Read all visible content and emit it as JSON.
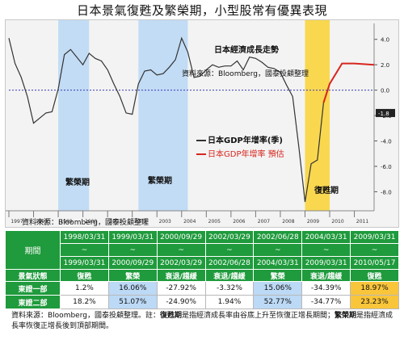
{
  "title": "日本景氣復甦及繁榮期，小型股常有優異表現",
  "chart": {
    "heading": "日本經濟成長走勢",
    "source_top": "資料來源：Bloomberg，國泰投顧整理",
    "source_bottom": "資料來源：Bloomberg，國泰投顧整理",
    "legend_actual": "日本GDP年增率(季)",
    "legend_forecast": "日本GDP年增率 預估",
    "period_labels": [
      "繁榮期",
      "繁榮期",
      "復甦期"
    ],
    "colors": {
      "boom": "#bcd9f5",
      "recovery": "#f9d233",
      "actual": "#333333",
      "forecast": "#d7261e",
      "zero": "#3a3ab8"
    }
  },
  "chart_data": {
    "type": "line",
    "title": "日本經濟成長走勢",
    "x_ticks": [
      "1997",
      "1998",
      "1999",
      "2000",
      "2001",
      "2002",
      "2003",
      "2004",
      "2005",
      "2006",
      "2007",
      "2008",
      "2009",
      "2010",
      "2011"
    ],
    "y_ticks": [
      "4.0",
      "2.0",
      "0.0",
      "-2.0",
      "-4.0",
      "-6.0",
      "-8.0"
    ],
    "ylim": [
      -9.5,
      5
    ],
    "xlim": [
      1997,
      2011.8
    ],
    "y_tick_values": [
      4,
      2,
      0,
      -2,
      -4,
      -6,
      -8
    ],
    "zero_marker": "-1.8",
    "series": [
      {
        "name": "日本GDP年增率(季)",
        "points": [
          [
            1997.0,
            4.1
          ],
          [
            1997.25,
            2.1
          ],
          [
            1997.5,
            1.0
          ],
          [
            1997.75,
            -0.5
          ],
          [
            1998.0,
            -2.6
          ],
          [
            1998.25,
            -2.2
          ],
          [
            1998.5,
            -1.8
          ],
          [
            1998.75,
            -1.7
          ],
          [
            1999.0,
            0.1
          ],
          [
            1999.25,
            2.8
          ],
          [
            1999.5,
            3.2
          ],
          [
            1999.75,
            2.6
          ],
          [
            2000.0,
            2.0
          ],
          [
            2000.25,
            2.9
          ],
          [
            2000.5,
            2.5
          ],
          [
            2000.75,
            2.3
          ],
          [
            2001.0,
            1.6
          ],
          [
            2001.25,
            0.5
          ],
          [
            2001.5,
            -0.5
          ],
          [
            2001.75,
            -1.8
          ],
          [
            2002.0,
            -1.9
          ],
          [
            2002.25,
            0.5
          ],
          [
            2002.5,
            1.5
          ],
          [
            2002.75,
            1.6
          ],
          [
            2003.0,
            1.2
          ],
          [
            2003.25,
            1.3
          ],
          [
            2003.5,
            1.8
          ],
          [
            2003.75,
            2.4
          ],
          [
            2004.0,
            4.1
          ],
          [
            2004.25,
            3.0
          ],
          [
            2004.5,
            1.0
          ],
          [
            2004.75,
            1.1
          ],
          [
            2005.0,
            1.6
          ],
          [
            2005.25,
            2.0
          ],
          [
            2005.5,
            1.8
          ],
          [
            2005.75,
            1.9
          ],
          [
            2006.0,
            1.9
          ],
          [
            2006.25,
            2.3
          ],
          [
            2006.5,
            1.6
          ],
          [
            2006.75,
            2.6
          ],
          [
            2007.0,
            2.5
          ],
          [
            2007.25,
            2.2
          ],
          [
            2007.5,
            1.8
          ],
          [
            2007.75,
            1.7
          ],
          [
            2008.0,
            1.4
          ],
          [
            2008.25,
            0.4
          ],
          [
            2008.5,
            -0.5
          ],
          [
            2008.75,
            -4.5
          ],
          [
            2009.0,
            -8.8
          ],
          [
            2009.25,
            -5.8
          ],
          [
            2009.5,
            -5.5
          ],
          [
            2009.75,
            -1.0
          ]
        ]
      },
      {
        "name": "日本GDP年增率 預估",
        "points": [
          [
            2009.75,
            -1.0
          ],
          [
            2010.0,
            0.5
          ],
          [
            2010.5,
            2.1
          ],
          [
            2011.0,
            2.1
          ],
          [
            2011.8,
            2.0
          ]
        ]
      }
    ],
    "shaded_periods": [
      {
        "label": "繁榮期",
        "start": 1999.0,
        "end": 2000.25
      },
      {
        "label": "繁榮期",
        "start": 2002.25,
        "end": 2004.25
      },
      {
        "label": "復甦期",
        "start": 2009.0,
        "end": 2010.0
      }
    ]
  },
  "table": {
    "header_label": "期間",
    "periods": [
      {
        "top": "1998/03/31",
        "bottom": "1999/03/31"
      },
      {
        "top": "1999/03/31",
        "bottom": "2000/09/29"
      },
      {
        "top": "2000/09/29",
        "bottom": "2002/03/29"
      },
      {
        "top": "2002/03/29",
        "bottom": "2002/06/28"
      },
      {
        "top": "2002/06/28",
        "bottom": "2004/03/31"
      },
      {
        "top": "2004/03/31",
        "bottom": "2009/03/31"
      },
      {
        "top": "2009/03/31",
        "bottom": "2010/05/17"
      }
    ],
    "tilde": "~",
    "state_label": "景氣狀態",
    "states": [
      "復甦",
      "繁榮",
      "衰退/趨緩",
      "衰退/趨緩",
      "繁榮",
      "衰退/趨緩",
      "復甦"
    ],
    "rows": [
      {
        "name": "東證一部",
        "values": [
          "1.2%",
          "16.06%",
          "-27.92%",
          "-3.32%",
          "15.06%",
          "-34.39%",
          "18.97%"
        ]
      },
      {
        "name": "東證二部",
        "values": [
          "18.2%",
          "51.07%",
          "-24.90%",
          "1.94%",
          "52.77%",
          "-34.77%",
          "23.23%"
        ]
      }
    ]
  },
  "note": {
    "prefix": "資料來源：Bloomberg，國泰投顧整理。註：",
    "term1": "復甦期",
    "text1": "是指經濟成長率由谷底上升至恢復正增長期間；",
    "term2": "繁榮期",
    "text2": "是指經濟成長率恢復正增長後到頂部期間。"
  }
}
